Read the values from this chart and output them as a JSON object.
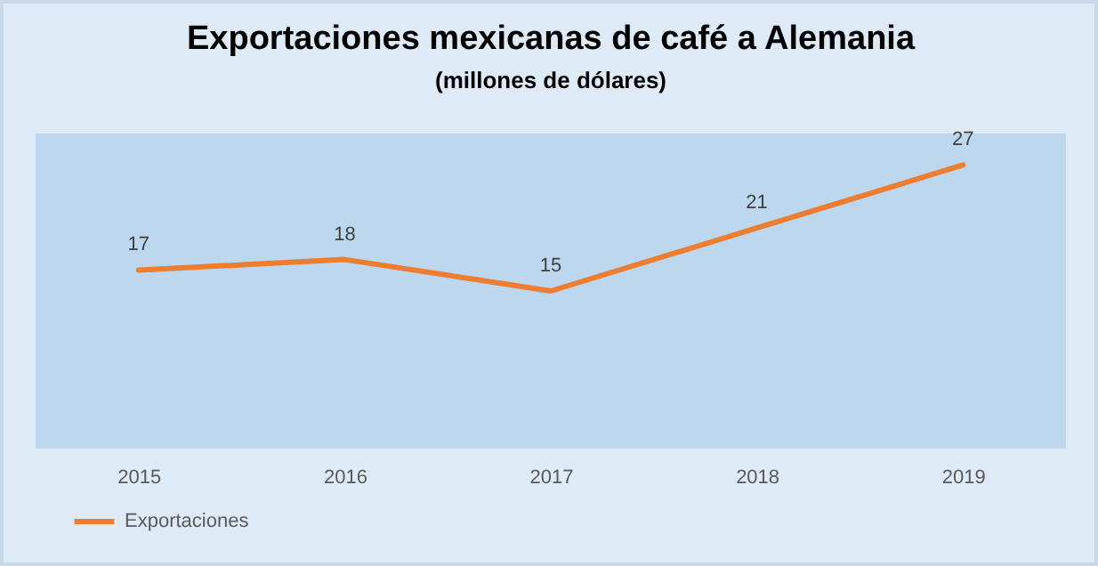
{
  "chart_data": {
    "type": "line",
    "title": "Exportaciones mexicanas de café a Alemania",
    "subtitle": "(millones de dólares)",
    "categories": [
      "2015",
      "2016",
      "2017",
      "2018",
      "2019"
    ],
    "series": [
      {
        "name": "Exportaciones",
        "color": "#ed7d31",
        "values": [
          17,
          18,
          15,
          21,
          27
        ]
      }
    ],
    "ylim": [
      0,
      30
    ],
    "tick_labels": "x",
    "data_labels": true,
    "grid": false,
    "legend": "bottom left",
    "marker": "none",
    "line_style": "solid"
  }
}
